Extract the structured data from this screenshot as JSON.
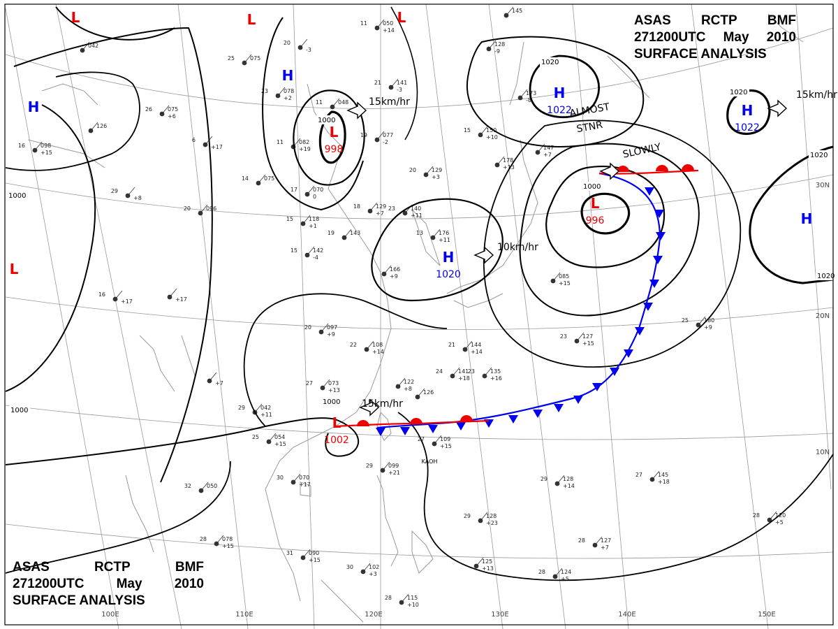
{
  "title": {
    "agency": [
      "ASAS",
      "RCTP",
      "BMF"
    ],
    "time": [
      "271200UTC",
      "May",
      "2010"
    ],
    "product": "SURFACE ANALYSIS"
  },
  "colors": {
    "high": "#0000ee",
    "low": "#ee0000",
    "cold_front": "#0000ee",
    "warm_front": "#ee0000",
    "isobar": "#000000",
    "grid": "#999999",
    "coast": "#999999",
    "station": "#333333"
  },
  "longitude_labels": [
    "100E",
    "110E",
    "120E",
    "130E",
    "140E",
    "150E"
  ],
  "latitude_labels": [
    "30N",
    "20N",
    "10N"
  ],
  "pressure_centers": [
    {
      "type": "H",
      "pressure": "1022"
    },
    {
      "type": "H",
      "pressure": "1022"
    },
    {
      "type": "H",
      "pressure": "1020"
    },
    {
      "type": "L",
      "pressure": "998"
    },
    {
      "type": "L",
      "pressure": "996"
    },
    {
      "type": "L",
      "pressure": "1002"
    },
    {
      "type": "H",
      "pressure": ""
    },
    {
      "type": "H",
      "pressure": ""
    },
    {
      "type": "H",
      "pressure": ""
    },
    {
      "type": "L",
      "pressure": ""
    },
    {
      "type": "L",
      "pressure": ""
    },
    {
      "type": "L",
      "pressure": ""
    },
    {
      "type": "L",
      "pressure": ""
    }
  ],
  "isobar_labels": [
    "1000",
    "1000",
    "1020",
    "1020",
    "1020",
    "1020",
    "1000",
    "1000",
    "1000"
  ],
  "motions": [
    {
      "text": "15km/hr"
    },
    {
      "text": "15km/hr"
    },
    {
      "text": "10km/hr"
    },
    {
      "text": "15km/hr"
    },
    {
      "text": ""
    }
  ],
  "annotations": [
    "ALMOST",
    "STNR",
    "SLOWLY",
    "KAOH"
  ],
  "stations": [
    {
      "t": "11",
      "p": "050",
      "d": "+14"
    },
    {
      "t": "",
      "p": "145",
      "d": ""
    },
    {
      "t": "",
      "p": "042",
      "d": ""
    },
    {
      "t": "20",
      "p": "",
      "d": "-3"
    },
    {
      "t": "25",
      "p": "075",
      "d": ""
    },
    {
      "t": "",
      "p": "128",
      "d": "-9"
    },
    {
      "t": "21",
      "p": "141",
      "d": "-3"
    },
    {
      "t": "23",
      "p": "078",
      "d": "+2"
    },
    {
      "t": "26",
      "p": "075",
      "d": "+6"
    },
    {
      "t": "",
      "p": "126",
      "d": ""
    },
    {
      "t": "11",
      "p": "048",
      "d": ""
    },
    {
      "t": "15",
      "p": "150",
      "d": "+10"
    },
    {
      "t": "19",
      "p": "077",
      "d": "-2"
    },
    {
      "t": "",
      "p": "173",
      "d": "-8"
    },
    {
      "t": "6",
      "p": "",
      "d": "+17"
    },
    {
      "t": "11",
      "p": "082",
      "d": "+19"
    },
    {
      "t": "16",
      "p": "098",
      "d": "+15"
    },
    {
      "t": "20",
      "p": "129",
      "d": "+3"
    },
    {
      "t": "",
      "p": "178",
      "d": "+13"
    },
    {
      "t": "14",
      "p": "075",
      "d": ""
    },
    {
      "t": "17",
      "p": "070",
      "d": "0"
    },
    {
      "t": "",
      "p": "147",
      "d": "+7"
    },
    {
      "t": "29",
      "p": "",
      "d": "+8"
    },
    {
      "t": "18",
      "p": "129",
      "d": "+7"
    },
    {
      "t": "23",
      "p": "140",
      "d": "+11"
    },
    {
      "t": "20",
      "p": "096",
      "d": ""
    },
    {
      "t": "15",
      "p": "118",
      "d": "+1"
    },
    {
      "t": "19",
      "p": "143",
      "d": ""
    },
    {
      "t": "13",
      "p": "176",
      "d": "+11"
    },
    {
      "t": "15",
      "p": "142",
      "d": "-4"
    },
    {
      "t": "",
      "p": "085",
      "d": "+15"
    },
    {
      "t": "",
      "p": "166",
      "d": "+9"
    },
    {
      "t": "16",
      "p": "",
      "d": "+17"
    },
    {
      "t": "",
      "p": "",
      "d": "+17"
    },
    {
      "t": "20",
      "p": "097",
      "d": "+9"
    },
    {
      "t": "25",
      "p": "180",
      "d": "+9"
    },
    {
      "t": "22",
      "p": "108",
      "d": "+14"
    },
    {
      "t": "21",
      "p": "144",
      "d": "+14"
    },
    {
      "t": "23",
      "p": "127",
      "d": "+15"
    },
    {
      "t": "27",
      "p": "073",
      "d": "+13"
    },
    {
      "t": "24",
      "p": "141",
      "d": "+18"
    },
    {
      "t": "23",
      "p": "135",
      "d": "+16"
    },
    {
      "t": "",
      "p": "",
      "d": "+7"
    },
    {
      "t": "",
      "p": "122",
      "d": "+8"
    },
    {
      "t": "",
      "p": "126",
      "d": ""
    },
    {
      "t": "29",
      "p": "042",
      "d": "+11"
    },
    {
      "t": "25",
      "p": "054",
      "d": "+15"
    },
    {
      "t": "27",
      "p": "109",
      "d": "+15"
    },
    {
      "t": "29",
      "p": "099",
      "d": "+21"
    },
    {
      "t": "30",
      "p": "070",
      "d": "+17"
    },
    {
      "t": "32",
      "p": "050",
      "d": ""
    },
    {
      "t": "29",
      "p": "128",
      "d": "+14"
    },
    {
      "t": "27",
      "p": "145",
      "d": "+18"
    },
    {
      "t": "29",
      "p": "128",
      "d": "+23"
    },
    {
      "t": "28",
      "p": "120",
      "d": "+5"
    },
    {
      "t": "28",
      "p": "078",
      "d": "+15"
    },
    {
      "t": "28",
      "p": "127",
      "d": "+7"
    },
    {
      "t": "31",
      "p": "090",
      "d": "+15"
    },
    {
      "t": "30",
      "p": "102",
      "d": "+3"
    },
    {
      "t": "",
      "p": "125",
      "d": "+13"
    },
    {
      "t": "28",
      "p": "124",
      "d": "+5"
    },
    {
      "t": "28",
      "p": "115",
      "d": "+10"
    }
  ]
}
